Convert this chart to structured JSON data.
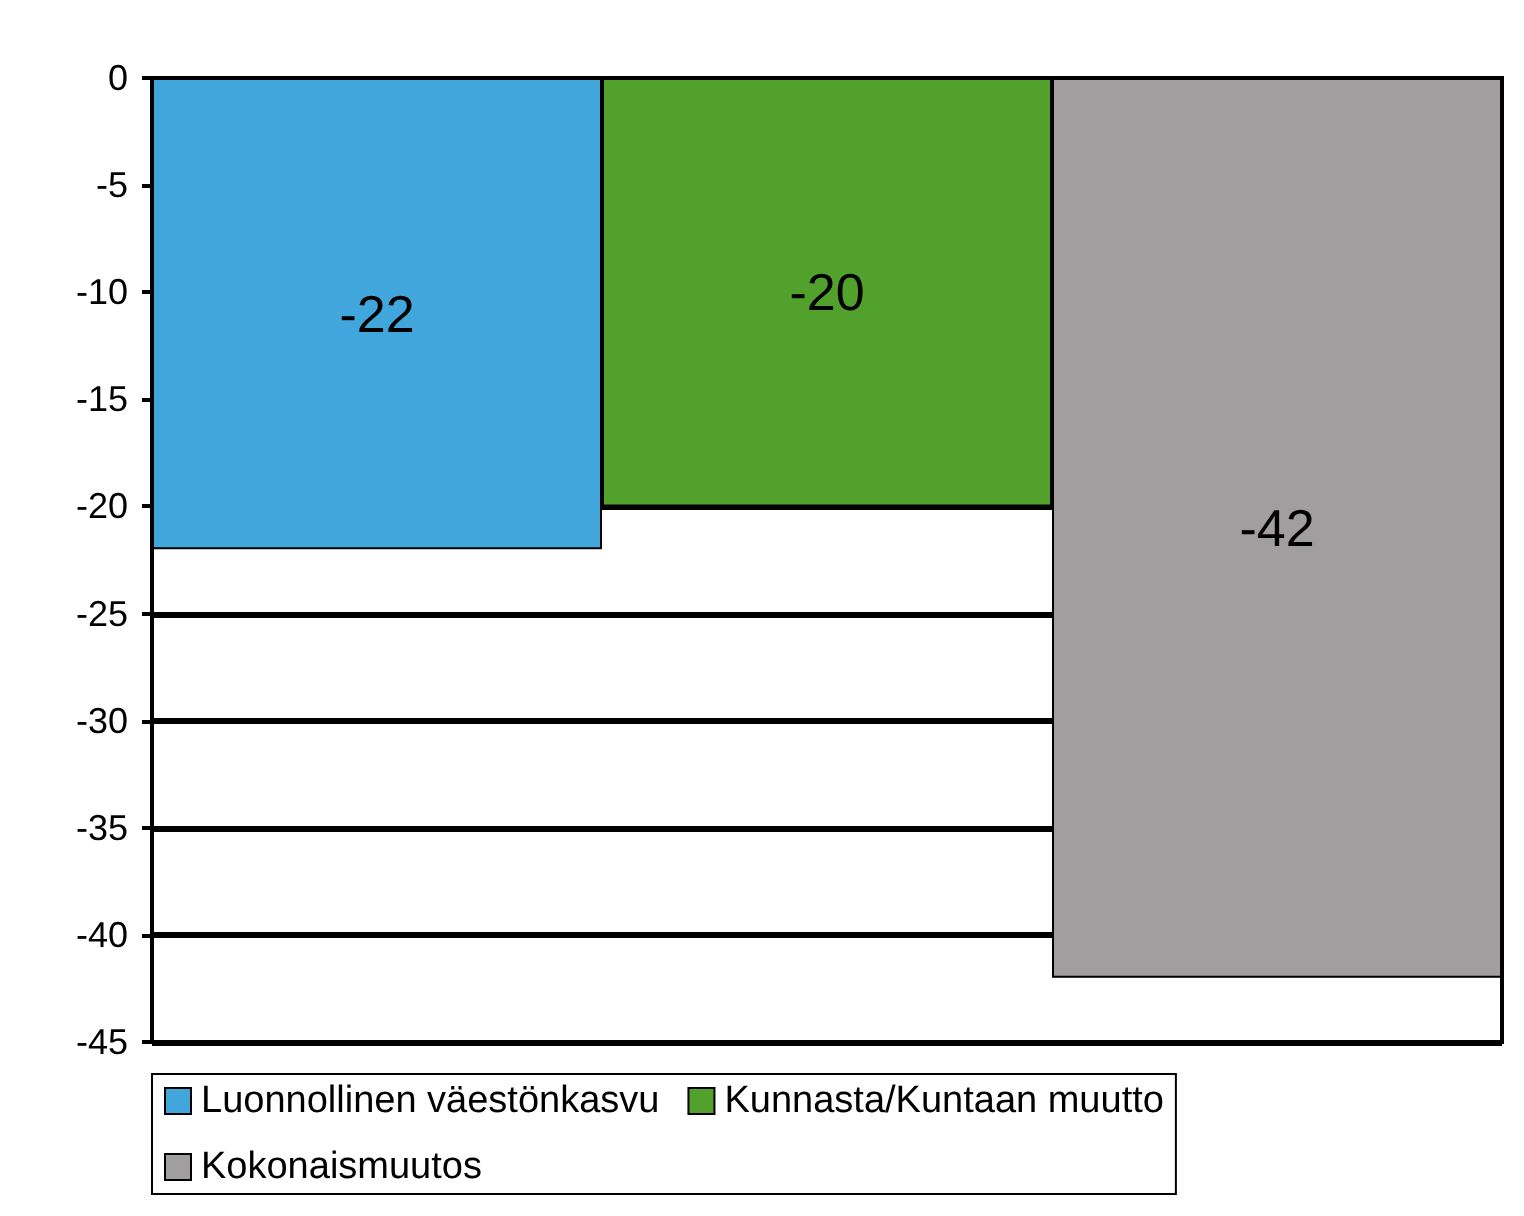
{
  "chart_data": {
    "type": "bar",
    "categories": [
      null,
      null,
      null
    ],
    "series": [
      {
        "name": "Luonnollinen väestönkasvu",
        "color": "#41a6db",
        "values": [
          -22,
          null,
          null
        ]
      },
      {
        "name": "Kunnasta/Kuntaan muutto",
        "color": "#52a12d",
        "values": [
          null,
          -20,
          null
        ]
      },
      {
        "name": "Kokonaismuutos",
        "color": "#a09e9f",
        "values": [
          null,
          null,
          -42
        ]
      }
    ],
    "ylim": [
      -45,
      0
    ],
    "yticks": [
      -45,
      -40,
      -35,
      -30,
      -25,
      -20,
      -15,
      -10,
      -5,
      0
    ],
    "grid": "y",
    "legend": "bottom",
    "data_labels": true
  }
}
